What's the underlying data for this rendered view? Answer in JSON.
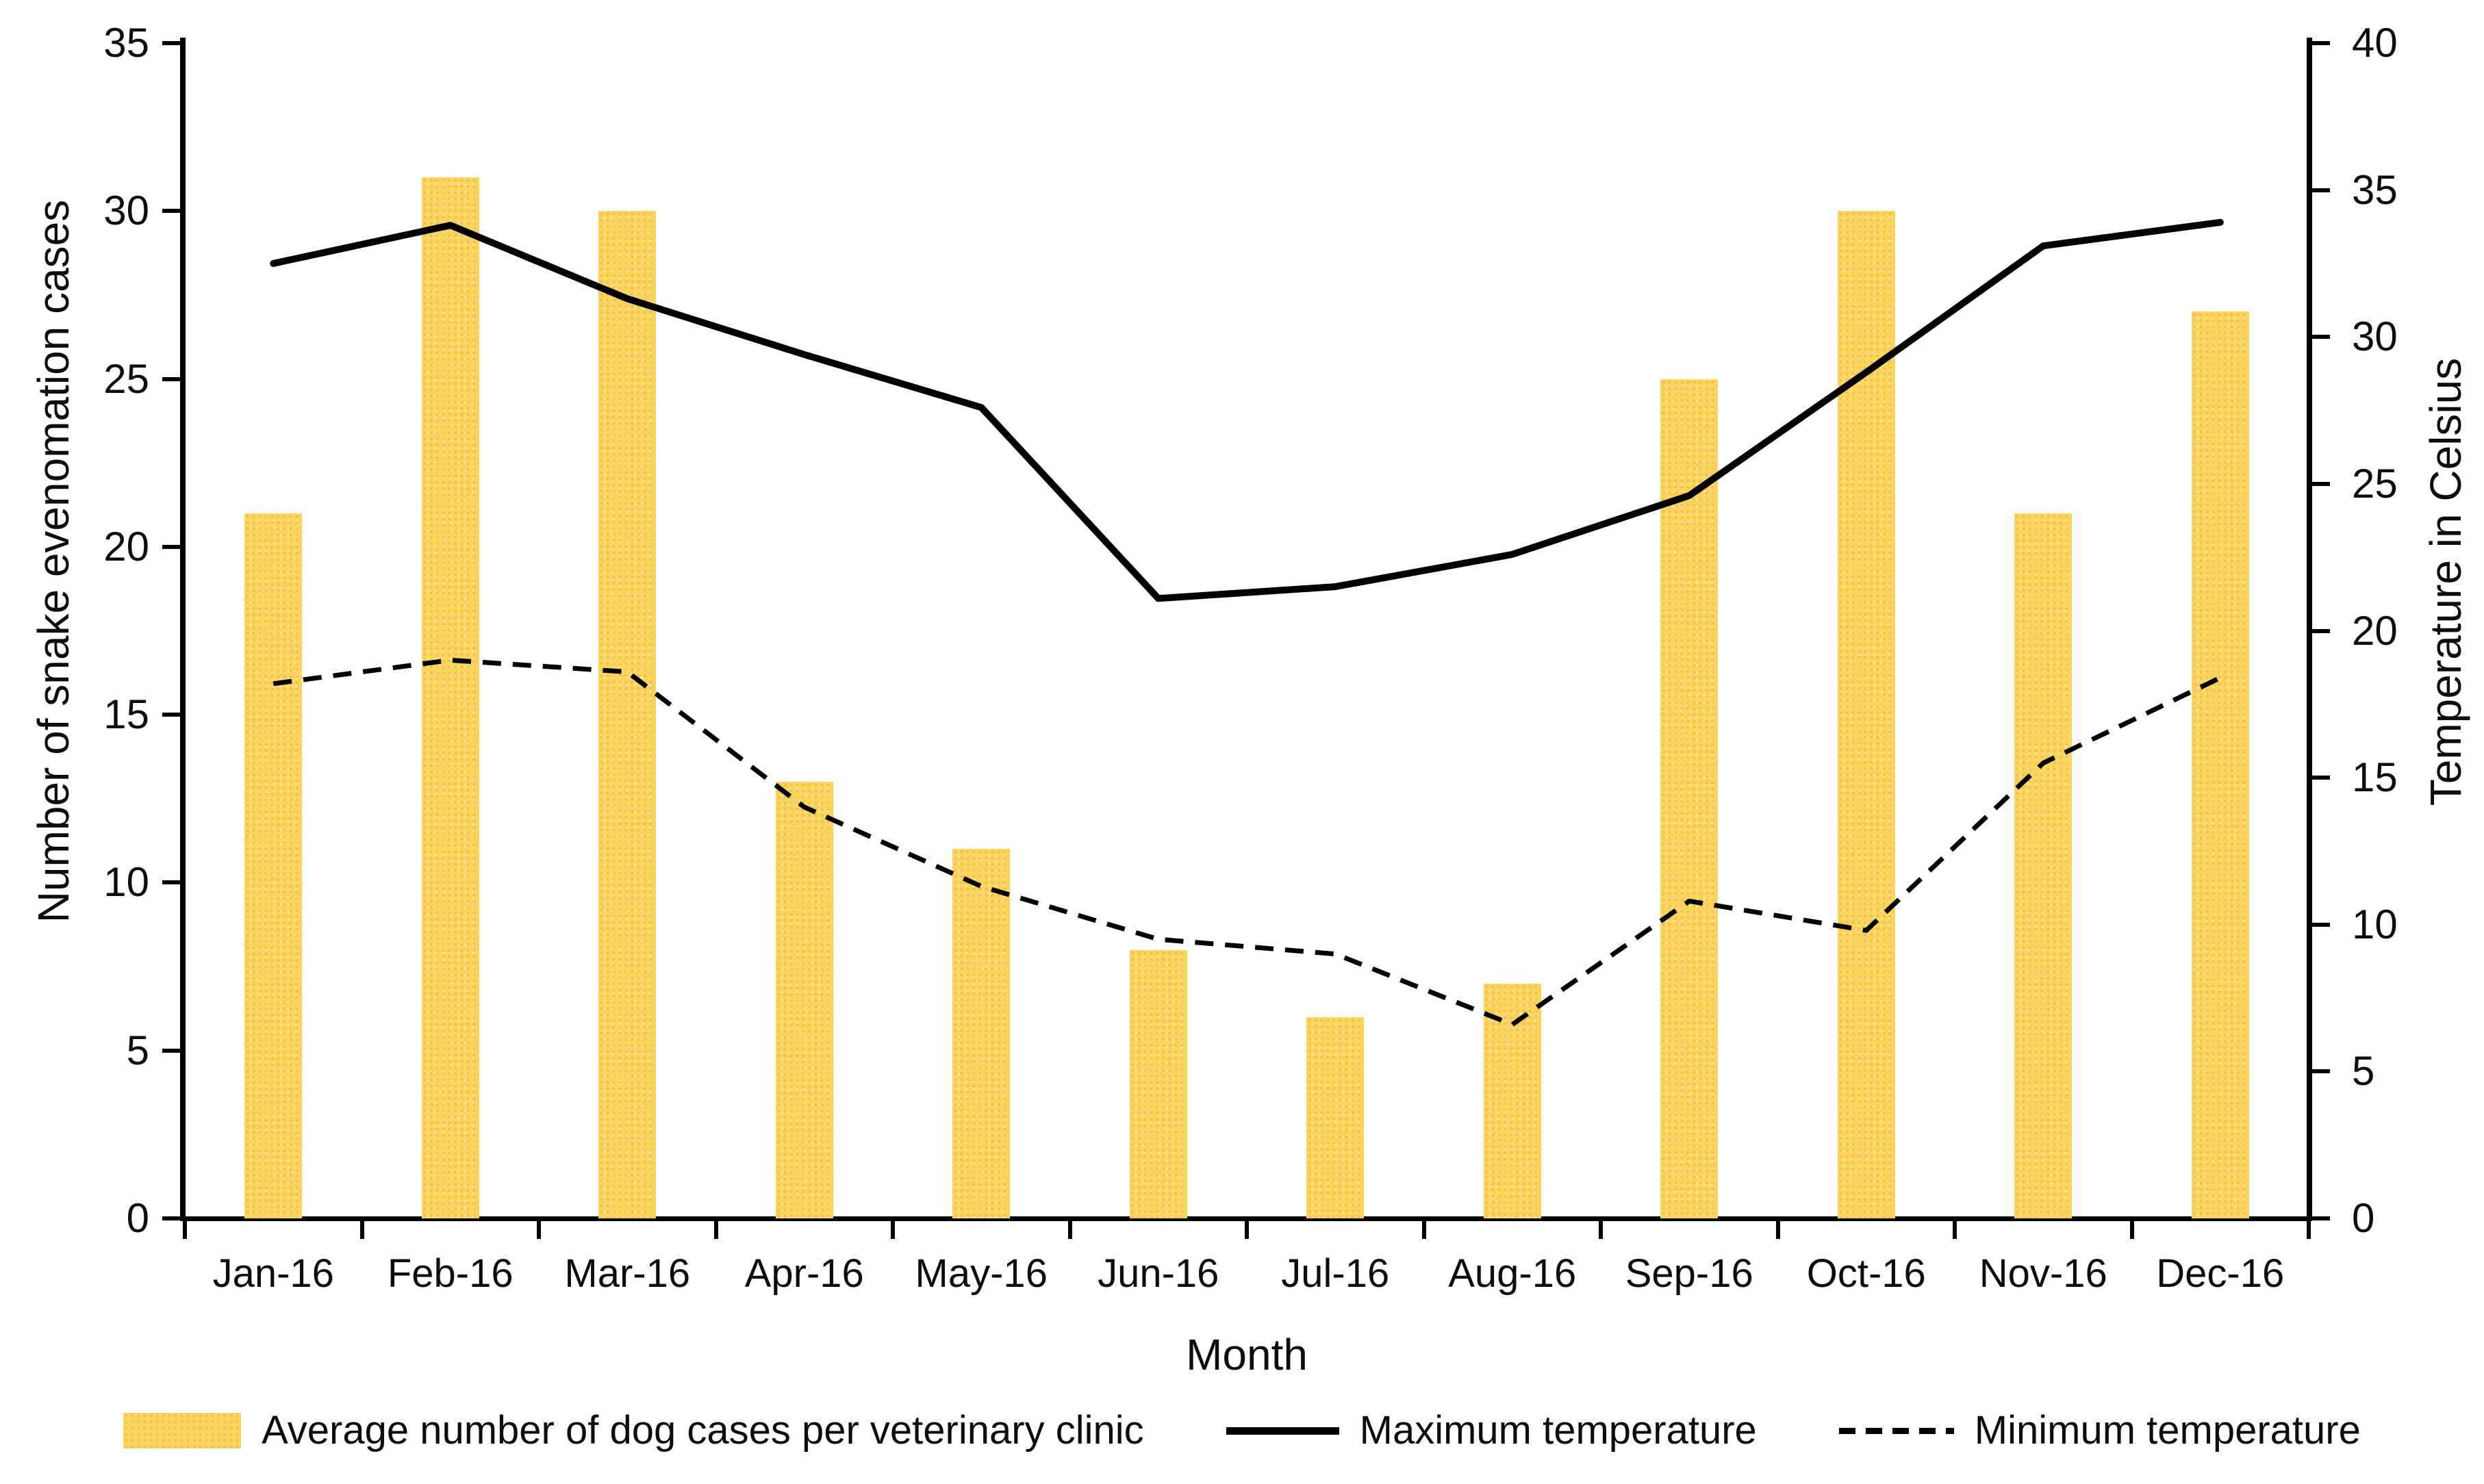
{
  "chart_data": {
    "type": "bar",
    "subtype": "combo-bar-line-dual-axis",
    "categories": [
      "Jan-16",
      "Feb-16",
      "Mar-16",
      "Apr-16",
      "May-16",
      "Jun-16",
      "Jul-16",
      "Aug-16",
      "Sep-16",
      "Oct-16",
      "Nov-16",
      "Dec-16"
    ],
    "series": [
      {
        "name": "Average number of dog cases per veterinary clinic",
        "type": "bar",
        "axis": "left",
        "color": "#FBD45C",
        "values": [
          21,
          31,
          30,
          13,
          11,
          8,
          6,
          7,
          25,
          30,
          21,
          27
        ]
      },
      {
        "name": "Maximum temperature",
        "type": "line",
        "style": "solid",
        "axis": "right",
        "color": "#000000",
        "values": [
          32.5,
          33.8,
          31.3,
          29.4,
          27.6,
          21.1,
          21.5,
          22.6,
          24.6,
          28.8,
          33.1,
          33.9
        ]
      },
      {
        "name": "Minimum temperature",
        "type": "line",
        "style": "dashed",
        "axis": "right",
        "color": "#000000",
        "values": [
          18.2,
          19.0,
          18.6,
          14.0,
          11.3,
          9.5,
          9.0,
          6.6,
          10.8,
          9.8,
          15.5,
          18.4
        ]
      }
    ],
    "xlabel": "Month",
    "left_axis": {
      "label": "Number of snake evenomation cases",
      "min": 0,
      "max": 35,
      "ticks": [
        0,
        5,
        10,
        15,
        20,
        25,
        30,
        35
      ]
    },
    "right_axis": {
      "label": "Temperature in Celsius",
      "min": 0,
      "max": 40,
      "ticks": [
        0,
        5,
        10,
        15,
        20,
        25,
        30,
        35,
        40
      ]
    },
    "grid": false,
    "legend_position": "bottom"
  },
  "colors": {
    "bar": "#FBD45C",
    "line": "#000000",
    "text": "#0d0d0d",
    "background": "#ffffff"
  }
}
